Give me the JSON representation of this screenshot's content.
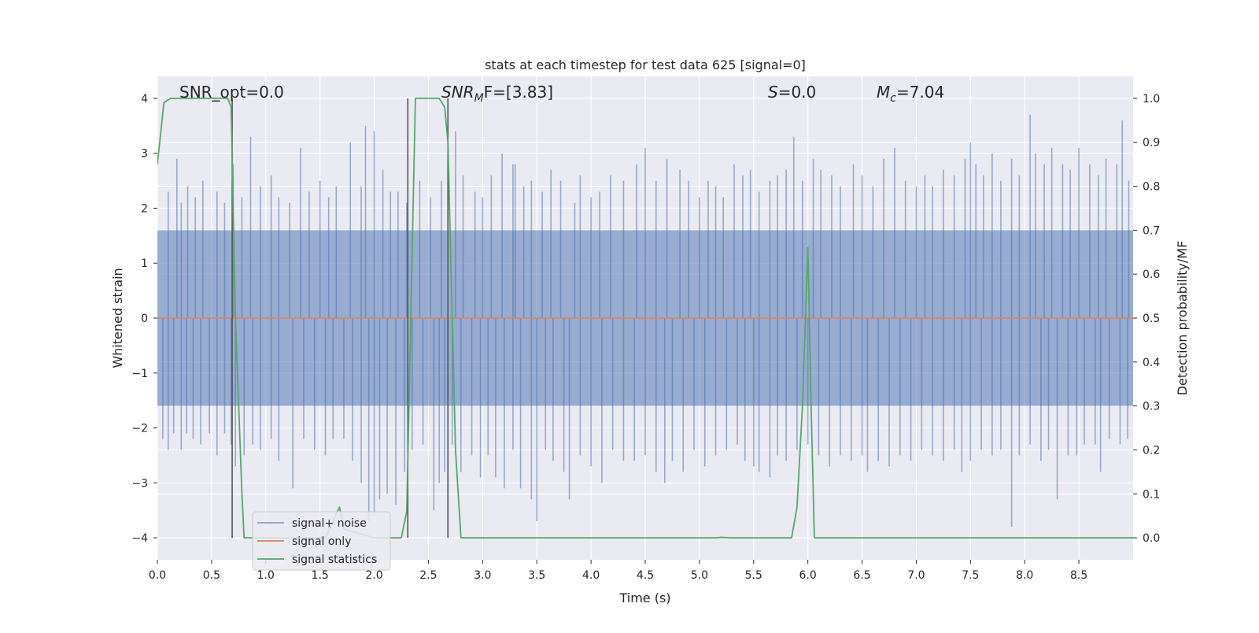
{
  "chart_data": {
    "type": "line",
    "title": "stats at each timestep for test data 625 [signal=0]",
    "xlabel": "Time (s)",
    "ylabel_left": "Whitened strain",
    "ylabel_right": "Detection probability/MF",
    "xlim": [
      0.0,
      9.0
    ],
    "ylim_left": [
      -4.4,
      4.4
    ],
    "ylim_right": [
      -0.05,
      1.05
    ],
    "x_ticks": [
      0.0,
      0.5,
      1.0,
      1.5,
      2.0,
      2.5,
      3.0,
      3.5,
      4.0,
      4.5,
      5.0,
      5.5,
      6.0,
      6.5,
      7.0,
      7.5,
      8.0,
      8.5
    ],
    "x_tick_labels": [
      "0.0",
      "0.5",
      "1.0",
      "1.5",
      "2.0",
      "2.5",
      "3.0",
      "3.5",
      "4.0",
      "4.5",
      "5.0",
      "5.5",
      "6.0",
      "6.5",
      "7.0",
      "7.5",
      "8.0",
      "8.5"
    ],
    "y_left_ticks": [
      -4,
      -3,
      -2,
      -1,
      0,
      1,
      2,
      3,
      4
    ],
    "y_left_tick_labels": [
      "−4",
      "−3",
      "−2",
      "−1",
      "0",
      "1",
      "2",
      "3",
      "4"
    ],
    "y_right_ticks": [
      0.0,
      0.1,
      0.2,
      0.3,
      0.4,
      0.5,
      0.6,
      0.7,
      0.8,
      0.9,
      1.0
    ],
    "y_right_tick_labels": [
      "0.0",
      "0.1",
      "0.2",
      "0.3",
      "0.4",
      "0.5",
      "0.6",
      "0.7",
      "0.8",
      "0.9",
      "1.0"
    ],
    "grid": true,
    "background": "#eaeaf2",
    "legend_position": "lower-left",
    "annotations": [
      {
        "plain": "SNR_opt=0.0"
      },
      {
        "main": "SNR",
        "sub": "M",
        "rest": "F=[3.83]"
      },
      {
        "main": "S",
        "rest": "=0.0"
      },
      {
        "main": "M",
        "sub": "c",
        "rest": "=7.04"
      }
    ],
    "series": [
      {
        "name": "signal+ noise",
        "color": "#4c72b0",
        "axis": "left",
        "typical_band": [
          -1.6,
          1.6
        ],
        "upper_spikes": [
          [
            0.1,
            2.3
          ],
          [
            0.18,
            2.9
          ],
          [
            0.22,
            2.1
          ],
          [
            0.28,
            2.4
          ],
          [
            0.35,
            2.2
          ],
          [
            0.42,
            2.5
          ],
          [
            0.55,
            2.3
          ],
          [
            0.62,
            2.1
          ],
          [
            0.7,
            2.8
          ],
          [
            0.78,
            2.2
          ],
          [
            0.86,
            3.3
          ],
          [
            0.95,
            2.4
          ],
          [
            1.05,
            2.6
          ],
          [
            1.12,
            2.2
          ],
          [
            1.22,
            2.1
          ],
          [
            1.32,
            3.1
          ],
          [
            1.4,
            2.3
          ],
          [
            1.5,
            2.5
          ],
          [
            1.58,
            2.2
          ],
          [
            1.65,
            2.4
          ],
          [
            1.78,
            3.2
          ],
          [
            1.88,
            2.4
          ],
          [
            1.92,
            3.5
          ],
          [
            2.0,
            3.4
          ],
          [
            2.08,
            2.7
          ],
          [
            2.15,
            2.3
          ],
          [
            2.22,
            2.3
          ],
          [
            2.3,
            2.1
          ],
          [
            2.42,
            2.5
          ],
          [
            2.52,
            2.2
          ],
          [
            2.62,
            2.5
          ],
          [
            2.75,
            3.4
          ],
          [
            2.82,
            2.6
          ],
          [
            2.93,
            2.3
          ],
          [
            3.0,
            2.2
          ],
          [
            3.08,
            2.6
          ],
          [
            3.18,
            3.0
          ],
          [
            3.28,
            2.8
          ],
          [
            3.3,
            2.8
          ],
          [
            3.38,
            2.4
          ],
          [
            3.45,
            2.5
          ],
          [
            3.55,
            2.3
          ],
          [
            3.63,
            2.7
          ],
          [
            3.72,
            2.5
          ],
          [
            3.85,
            2.1
          ],
          [
            3.9,
            2.6
          ],
          [
            4.0,
            2.2
          ],
          [
            4.08,
            2.3
          ],
          [
            4.18,
            2.6
          ],
          [
            4.3,
            2.5
          ],
          [
            4.42,
            2.8
          ],
          [
            4.5,
            3.1
          ],
          [
            4.6,
            2.5
          ],
          [
            4.7,
            2.9
          ],
          [
            4.82,
            2.7
          ],
          [
            4.9,
            2.5
          ],
          [
            5.0,
            2.2
          ],
          [
            5.08,
            2.5
          ],
          [
            5.15,
            2.4
          ],
          [
            5.22,
            2.2
          ],
          [
            5.32,
            2.8
          ],
          [
            5.4,
            2.6
          ],
          [
            5.47,
            2.7
          ],
          [
            5.55,
            2.3
          ],
          [
            5.65,
            2.5
          ],
          [
            5.72,
            2.6
          ],
          [
            5.8,
            2.7
          ],
          [
            5.87,
            3.3
          ],
          [
            5.95,
            2.5
          ],
          [
            6.05,
            2.9
          ],
          [
            6.12,
            2.7
          ],
          [
            6.22,
            2.6
          ],
          [
            6.3,
            2.4
          ],
          [
            6.42,
            2.8
          ],
          [
            6.5,
            2.6
          ],
          [
            6.6,
            2.4
          ],
          [
            6.7,
            2.9
          ],
          [
            6.8,
            3.1
          ],
          [
            6.9,
            2.5
          ],
          [
            7.0,
            2.4
          ],
          [
            7.08,
            2.6
          ],
          [
            7.15,
            2.4
          ],
          [
            7.25,
            2.7
          ],
          [
            7.35,
            2.6
          ],
          [
            7.45,
            2.9
          ],
          [
            7.5,
            3.2
          ],
          [
            7.55,
            2.8
          ],
          [
            7.62,
            2.6
          ],
          [
            7.7,
            3.0
          ],
          [
            7.78,
            2.5
          ],
          [
            7.88,
            2.9
          ],
          [
            7.95,
            2.6
          ],
          [
            8.05,
            3.7
          ],
          [
            8.1,
            3.0
          ],
          [
            8.18,
            2.8
          ],
          [
            8.25,
            3.1
          ],
          [
            8.35,
            2.8
          ],
          [
            8.42,
            2.7
          ],
          [
            8.5,
            3.1
          ],
          [
            8.6,
            2.8
          ],
          [
            8.68,
            2.6
          ],
          [
            8.75,
            2.9
          ],
          [
            8.85,
            2.8
          ],
          [
            8.9,
            3.6
          ],
          [
            8.96,
            2.5
          ]
        ],
        "lower_spikes": [
          [
            0.05,
            -2.2
          ],
          [
            0.1,
            -2.4
          ],
          [
            0.15,
            -2.1
          ],
          [
            0.22,
            -2.4
          ],
          [
            0.27,
            -2.1
          ],
          [
            0.33,
            -2.2
          ],
          [
            0.4,
            -2.3
          ],
          [
            0.48,
            -2.1
          ],
          [
            0.55,
            -2.5
          ],
          [
            0.62,
            -2.1
          ],
          [
            0.68,
            -2.3
          ],
          [
            0.72,
            -2.7
          ],
          [
            0.8,
            -2.5
          ],
          [
            0.88,
            -2.3
          ],
          [
            0.95,
            -2.4
          ],
          [
            1.05,
            -2.2
          ],
          [
            1.12,
            -2.6
          ],
          [
            1.25,
            -3.1
          ],
          [
            1.35,
            -2.2
          ],
          [
            1.45,
            -2.4
          ],
          [
            1.55,
            -2.5
          ],
          [
            1.62,
            -2.2
          ],
          [
            1.72,
            -2.2
          ],
          [
            1.8,
            -2.6
          ],
          [
            1.88,
            -3.0
          ],
          [
            1.95,
            -3.7
          ],
          [
            2.0,
            -3.6
          ],
          [
            2.05,
            -3.3
          ],
          [
            2.12,
            -3.2
          ],
          [
            2.2,
            -3.4
          ],
          [
            2.28,
            -2.8
          ],
          [
            2.35,
            -2.4
          ],
          [
            2.45,
            -2.3
          ],
          [
            2.55,
            -3.5
          ],
          [
            2.6,
            -3.0
          ],
          [
            2.65,
            -2.8
          ],
          [
            2.72,
            -2.3
          ],
          [
            2.8,
            -2.8
          ],
          [
            2.9,
            -2.5
          ],
          [
            2.98,
            -2.9
          ],
          [
            3.05,
            -2.5
          ],
          [
            3.12,
            -2.9
          ],
          [
            3.2,
            -3.1
          ],
          [
            3.28,
            -2.4
          ],
          [
            3.35,
            -3.1
          ],
          [
            3.45,
            -3.3
          ],
          [
            3.5,
            -3.7
          ],
          [
            3.58,
            -2.4
          ],
          [
            3.65,
            -2.6
          ],
          [
            3.75,
            -2.8
          ],
          [
            3.8,
            -3.3
          ],
          [
            3.9,
            -2.5
          ],
          [
            4.0,
            -2.7
          ],
          [
            4.1,
            -3.0
          ],
          [
            4.2,
            -2.4
          ],
          [
            4.3,
            -2.6
          ],
          [
            4.4,
            -2.6
          ],
          [
            4.5,
            -2.5
          ],
          [
            4.6,
            -2.8
          ],
          [
            4.68,
            -3.0
          ],
          [
            4.75,
            -2.6
          ],
          [
            4.85,
            -2.8
          ],
          [
            4.95,
            -2.4
          ],
          [
            5.05,
            -2.7
          ],
          [
            5.15,
            -2.5
          ],
          [
            5.25,
            -2.4
          ],
          [
            5.35,
            -2.3
          ],
          [
            5.42,
            -2.6
          ],
          [
            5.5,
            -2.7
          ],
          [
            5.55,
            -2.8
          ],
          [
            5.65,
            -2.9
          ],
          [
            5.72,
            -2.5
          ],
          [
            5.8,
            -2.6
          ],
          [
            5.9,
            -2.4
          ],
          [
            6.0,
            -2.3
          ],
          [
            6.1,
            -2.5
          ],
          [
            6.2,
            -2.7
          ],
          [
            6.3,
            -2.5
          ],
          [
            6.4,
            -2.6
          ],
          [
            6.5,
            -2.5
          ],
          [
            6.55,
            -2.8
          ],
          [
            6.65,
            -2.6
          ],
          [
            6.75,
            -2.7
          ],
          [
            6.85,
            -2.5
          ],
          [
            6.95,
            -2.6
          ],
          [
            7.05,
            -2.4
          ],
          [
            7.15,
            -2.5
          ],
          [
            7.25,
            -2.6
          ],
          [
            7.35,
            -2.4
          ],
          [
            7.42,
            -2.8
          ],
          [
            7.5,
            -2.6
          ],
          [
            7.6,
            -2.4
          ],
          [
            7.7,
            -2.5
          ],
          [
            7.78,
            -2.4
          ],
          [
            7.88,
            -3.8
          ],
          [
            7.95,
            -2.5
          ],
          [
            8.05,
            -2.3
          ],
          [
            8.15,
            -2.6
          ],
          [
            8.22,
            -2.4
          ],
          [
            8.3,
            -3.3
          ],
          [
            8.4,
            -2.5
          ],
          [
            8.48,
            -2.5
          ],
          [
            8.55,
            -2.3
          ],
          [
            8.65,
            -2.3
          ],
          [
            8.7,
            -2.8
          ],
          [
            8.78,
            -2.2
          ],
          [
            8.88,
            -2.3
          ],
          [
            8.95,
            -2.2
          ]
        ]
      },
      {
        "name": "signal only",
        "color": "#dd8452",
        "axis": "left",
        "x": [
          0.0,
          9.0
        ],
        "y": [
          0.0,
          0.0
        ]
      },
      {
        "name": "signal statistics",
        "color": "#55a868",
        "axis": "right",
        "x": [
          0.0,
          0.06,
          0.12,
          0.5,
          0.65,
          0.68,
          0.72,
          0.78,
          0.8,
          0.85,
          1.0,
          1.2,
          1.55,
          1.68,
          1.72,
          2.0,
          2.25,
          2.3,
          2.38,
          2.6,
          2.65,
          2.68,
          2.75,
          2.8,
          2.85,
          3.0,
          4.0,
          5.0,
          5.15,
          5.2,
          5.3,
          5.5,
          5.85,
          5.9,
          5.95,
          6.0,
          6.03,
          6.06,
          6.08,
          7.0,
          8.0,
          9.0
        ],
        "y": [
          0.85,
          0.99,
          1.0,
          1.0,
          1.0,
          0.98,
          0.5,
          0.1,
          0.0,
          0.0,
          0.0,
          0.0,
          0.0,
          0.07,
          0.02,
          0.0,
          0.0,
          0.06,
          1.0,
          1.0,
          0.98,
          0.9,
          0.2,
          0.0,
          0.0,
          0.0,
          0.0,
          0.0,
          0.0,
          0.001,
          0.0,
          0.0,
          0.0,
          0.07,
          0.3,
          0.66,
          0.3,
          0.0,
          0.0,
          0.0,
          0.0,
          0.0
        ]
      }
    ],
    "vertical_markers": {
      "color": "#555555",
      "x": [
        0.69,
        2.31,
        2.68
      ],
      "ymin": -4.0,
      "ymax": [
        4.0,
        4.0,
        4.0
      ]
    }
  }
}
